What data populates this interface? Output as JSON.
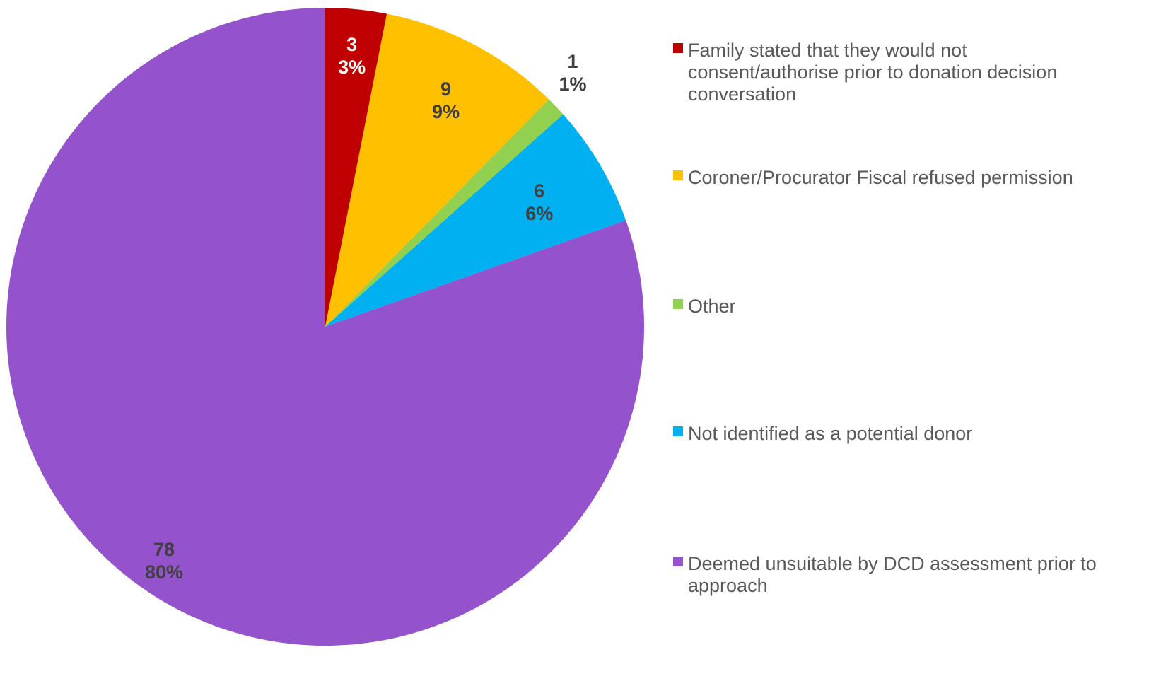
{
  "chart_data": {
    "type": "pie",
    "start_angle": "12 o'clock",
    "direction": "clockwise",
    "legend_position": "right",
    "slices": [
      {
        "name": "Family stated that they would not\nconsent/authorise prior to donation decision\nconversation",
        "value": 3,
        "percent_label": "3%",
        "color": "#C00000",
        "label_color": "#FFFFFF"
      },
      {
        "name": "Coroner/Procurator Fiscal refused permission",
        "value": 9,
        "percent_label": "9%",
        "color": "#FFC000",
        "label_color": "#404040"
      },
      {
        "name": "Other",
        "value": 1,
        "percent_label": "1%",
        "color": "#92D050",
        "label_color": "#404040"
      },
      {
        "name": "Not identified as a potential donor",
        "value": 6,
        "percent_label": "6%",
        "color": "#00B0F0",
        "label_color": "#404040"
      },
      {
        "name": "Deemed unsuitable by DCD assessment prior to\napproach",
        "value": 78,
        "percent_label": "80%",
        "color": "#9452CC",
        "label_color": "#404040"
      }
    ]
  }
}
